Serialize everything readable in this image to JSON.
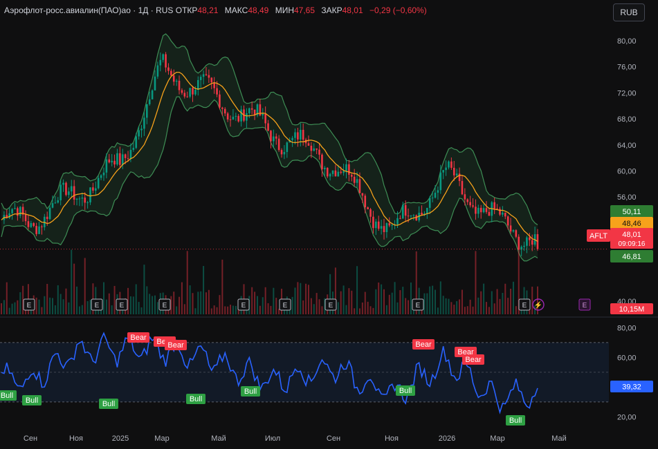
{
  "header": {
    "symbol": "Аэрофлот-росс.авиалин(ПАО)ао",
    "interval": "1Д",
    "exchange": "RUS",
    "open_label": "ОТКР",
    "open": "48,21",
    "high_label": "МАКС",
    "high": "48,49",
    "low_label": "МИН",
    "low": "47,65",
    "close_label": "ЗАКР",
    "close": "48,01",
    "change": "−0,29 (−0,60%)"
  },
  "currency_button": "RUB",
  "colors": {
    "background": "#0f0f10",
    "up": "#089981",
    "down": "#f23645",
    "sma": "#f7a21b",
    "bands": "#3e8e55",
    "rsi": "#2962ff",
    "bull_label": "#2ea043",
    "bear_label": "#f23645"
  },
  "price_axis": {
    "ticks": [
      "80,00",
      "76,00",
      "72,00",
      "68,00",
      "64,00",
      "60,00",
      "56,00",
      "52,00",
      "40,00"
    ]
  },
  "price_badges": {
    "upper_band": "50,11",
    "sma": "48,46",
    "ticker": "AFLT",
    "last": "48,01",
    "countdown": "09:09:16",
    "lower_band": "46,81",
    "volume": "10,15M"
  },
  "rsi_axis": {
    "ticks": [
      "80,00",
      "60,00",
      "20,00"
    ],
    "value": "39,32"
  },
  "time_axis": [
    "Сен",
    "Ноя",
    "2025",
    "Мар",
    "Май",
    "Июл",
    "Сен",
    "Ноя",
    "2026",
    "Мар",
    "Май"
  ],
  "event_markers": {
    "earnings": "E"
  },
  "chart_data": {
    "type": "candlestick",
    "title": "Аэрофлот-росс.авиалин(ПАО)ао · 1Д · RUS",
    "price_ylim": [
      38,
      82
    ],
    "rsi_ylim": [
      16,
      82
    ],
    "anchors": [
      {
        "date": "Сен",
        "price": 52.5,
        "rsi": 45
      },
      {
        "date": "Ноя",
        "price": 56.5,
        "rsi": 64
      },
      {
        "date": "2025",
        "price": 61,
        "rsi": 65
      },
      {
        "date": "Мар",
        "price": 75.5,
        "rsi": 66
      },
      {
        "date": "Май",
        "price": 71,
        "rsi": 56
      },
      {
        "date": "Июл",
        "price": 66,
        "rsi": 44
      },
      {
        "date": "Сен",
        "price": 61.5,
        "rsi": 54
      },
      {
        "date": "Ноя",
        "price": 50.5,
        "rsi": 34
      },
      {
        "date": "2026",
        "price": 59,
        "rsi": 58
      },
      {
        "date": "Мар",
        "price": 52,
        "rsi": 32
      },
      {
        "date": "last",
        "price": 48.01,
        "rsi": 39.32
      }
    ],
    "sma_last": 48.46,
    "upper_band_last": 50.11,
    "lower_band_last": 46.81,
    "volume_last": "10,15M",
    "rsi_last": 39.32,
    "signals": [
      {
        "label": "Bull",
        "at": "Сен"
      },
      {
        "label": "Bull",
        "at": "Сен"
      },
      {
        "label": "Bull",
        "at": "2025"
      },
      {
        "label": "Bear",
        "at": "Мар"
      },
      {
        "label": "Bear",
        "at": "Мар"
      },
      {
        "label": "Bear",
        "at": "Мар"
      },
      {
        "label": "Bull",
        "at": "Май"
      },
      {
        "label": "Bull",
        "at": "Июл"
      },
      {
        "label": "Bear",
        "at": "Ноя"
      },
      {
        "label": "Bull",
        "at": "Ноя"
      },
      {
        "label": "Bear",
        "at": "2026"
      },
      {
        "label": "Bear",
        "at": "2026"
      },
      {
        "label": "Bull",
        "at": "Мар"
      }
    ]
  }
}
